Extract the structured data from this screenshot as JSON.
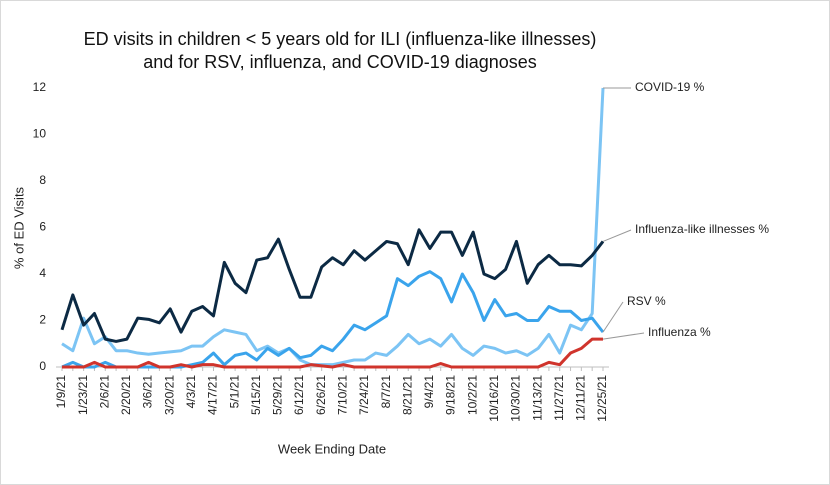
{
  "chart_data": {
    "type": "line",
    "title": [
      "ED visits in children < 5 years old for ILI (influenza-like illnesses)",
      "and for RSV, influenza, and COVID-19 diagnoses"
    ],
    "y_label": "% of ED Visits",
    "x_label": "Week Ending Date",
    "categories": [
      "1/9/21",
      null,
      "1/23/21",
      null,
      "2/6/21",
      null,
      "2/20/21",
      null,
      "3/6/21",
      null,
      "3/20/21",
      null,
      "4/3/21",
      null,
      "4/17/21",
      null,
      "5/1/21",
      null,
      "5/15/21",
      null,
      "5/29/21",
      null,
      "6/12/21",
      null,
      "6/26/21",
      null,
      "7/10/21",
      null,
      "7/24/21",
      null,
      "8/7/21",
      null,
      "8/21/21",
      null,
      "9/4/21",
      null,
      "9/18/21",
      null,
      "10/2/21",
      null,
      "10/16/21",
      null,
      "10/30/21",
      null,
      "11/13/21",
      null,
      "11/27/21",
      null,
      "12/11/21",
      null,
      "12/25/21"
    ],
    "ylim": [
      0,
      12
    ],
    "yticks": [
      0,
      2,
      4,
      6,
      8,
      10,
      12
    ],
    "grid": false,
    "series": [
      {
        "name": "COVID-19 %",
        "color": "#7cc4f4",
        "values": [
          1.0,
          0.7,
          2.1,
          1.0,
          1.3,
          0.7,
          0.7,
          0.6,
          0.55,
          0.6,
          0.65,
          0.7,
          0.9,
          0.9,
          1.3,
          1.6,
          1.5,
          1.4,
          0.7,
          0.9,
          0.6,
          0.8,
          0.3,
          0.1,
          0.1,
          0.1,
          0.2,
          0.3,
          0.3,
          0.6,
          0.5,
          0.9,
          1.4,
          1.0,
          1.2,
          0.9,
          1.4,
          0.8,
          0.5,
          0.9,
          0.8,
          0.6,
          0.7,
          0.5,
          0.8,
          1.4,
          0.6,
          1.8,
          1.6,
          2.3,
          12.0
        ]
      },
      {
        "name": "Influenza-like illnesses %",
        "color": "#0c2a44",
        "values": [
          1.6,
          3.1,
          1.8,
          2.3,
          1.2,
          1.1,
          1.2,
          2.1,
          2.05,
          1.9,
          2.5,
          1.5,
          2.4,
          2.6,
          2.2,
          4.5,
          3.6,
          3.2,
          4.6,
          4.7,
          5.5,
          4.2,
          3.0,
          3.0,
          4.3,
          4.7,
          4.4,
          5.0,
          4.6,
          5.0,
          5.4,
          5.3,
          4.4,
          5.9,
          5.1,
          5.8,
          5.8,
          4.8,
          5.8,
          4.0,
          3.8,
          4.2,
          5.4,
          3.6,
          4.4,
          4.8,
          4.4,
          4.4,
          4.35,
          4.8,
          5.4
        ]
      },
      {
        "name": "RSV %",
        "color": "#3aa4ec",
        "values": [
          0.0,
          0.2,
          0.0,
          0.0,
          0.2,
          0.0,
          0.0,
          0.0,
          0.0,
          0.0,
          0.0,
          0.0,
          0.1,
          0.2,
          0.6,
          0.1,
          0.5,
          0.6,
          0.3,
          0.8,
          0.5,
          0.8,
          0.4,
          0.5,
          0.9,
          0.7,
          1.2,
          1.8,
          1.6,
          1.9,
          2.2,
          3.8,
          3.5,
          3.9,
          4.1,
          3.8,
          2.8,
          4.0,
          3.2,
          2.0,
          2.9,
          2.2,
          2.3,
          2.0,
          2.0,
          2.6,
          2.4,
          2.4,
          2.0,
          2.1,
          1.5
        ]
      },
      {
        "name": "Influenza %",
        "color": "#d0342c",
        "values": [
          0.0,
          0.0,
          0.0,
          0.2,
          0.0,
          0.0,
          0.0,
          0.0,
          0.2,
          0.0,
          0.0,
          0.1,
          0.0,
          0.1,
          0.1,
          0.0,
          0.0,
          0.0,
          0.0,
          0.0,
          0.0,
          0.0,
          0.0,
          0.1,
          0.05,
          0.0,
          0.1,
          0.0,
          0.0,
          0.0,
          0.0,
          0.0,
          0.0,
          0.0,
          0.0,
          0.15,
          0.0,
          0.0,
          0.0,
          0.0,
          0.0,
          0.0,
          0.0,
          0.0,
          0.0,
          0.2,
          0.1,
          0.6,
          0.8,
          1.2,
          1.2
        ]
      }
    ]
  }
}
